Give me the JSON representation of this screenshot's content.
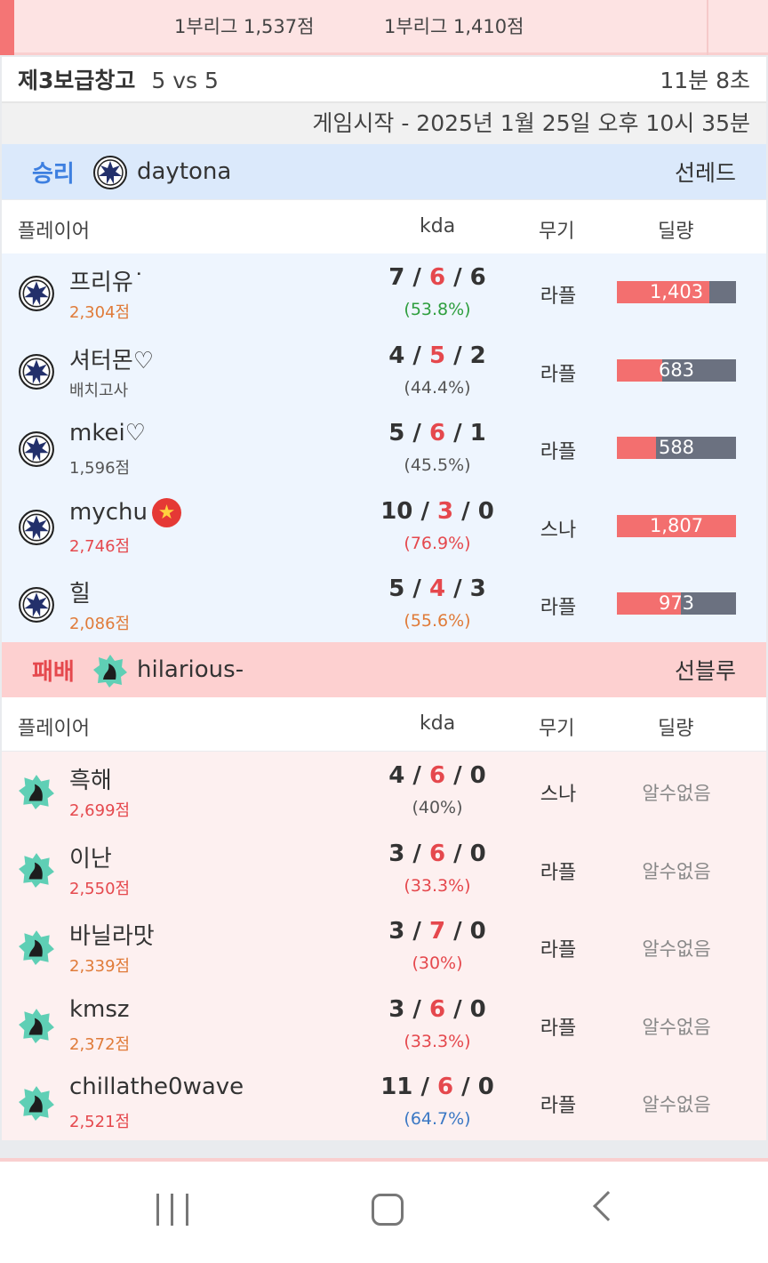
{
  "prev_match": {
    "left_league": "1부리그 1,537점",
    "right_league": "1부리그 1,410점"
  },
  "game": {
    "map": "제3보급창고",
    "mode": "5 vs 5",
    "duration": "11분 8초",
    "start_time": "게임시작 - 2025년 1월 25일 오후 10시 35분"
  },
  "columns": {
    "player": "플레이어",
    "kda": "kda",
    "weapon": "무기",
    "damage": "딜량"
  },
  "colors": {
    "win": "#3d7fe0",
    "lose": "#e5484d",
    "win_bg": "#dbe9fb",
    "lose_bg": "#fdd0d0",
    "orange": "#e07b39",
    "red": "#e5484d",
    "green": "#2e9e3e",
    "gray": "#555555",
    "blue": "#3b78c4"
  },
  "max_damage": 1807,
  "winner": {
    "result": "승리",
    "clan": "daytona",
    "side": "선레드",
    "emblem": "daytona-emblem-icon",
    "players": [
      {
        "name": "프리유˙",
        "points": "2,304점",
        "points_color": "orange",
        "k": "7",
        "d": "6",
        "a": "6",
        "pct": "(53.8%)",
        "pct_color": "green",
        "weapon": "라플",
        "damage": 1403,
        "damage_label": "1,403"
      },
      {
        "name": "셔터몬♡",
        "points": "배치고사",
        "points_color": "gray",
        "k": "4",
        "d": "5",
        "a": "2",
        "pct": "(44.4%)",
        "pct_color": "gray",
        "weapon": "라플",
        "damage": 683,
        "damage_label": "683"
      },
      {
        "name": "mkei♡",
        "points": "1,596점",
        "points_color": "gray",
        "k": "5",
        "d": "6",
        "a": "1",
        "pct": "(45.5%)",
        "pct_color": "gray",
        "weapon": "라플",
        "damage": 588,
        "damage_label": "588"
      },
      {
        "name": "mychu",
        "badge": "star-badge-icon",
        "points": "2,746점",
        "points_color": "red",
        "k": "10",
        "d": "3",
        "a": "0",
        "pct": "(76.9%)",
        "pct_color": "red",
        "weapon": "스나",
        "damage": 1807,
        "damage_label": "1,807"
      },
      {
        "name": "힐",
        "points": "2,086점",
        "points_color": "orange",
        "k": "5",
        "d": "4",
        "a": "3",
        "pct": "(55.6%)",
        "pct_color": "orange",
        "weapon": "라플",
        "damage": 973,
        "damage_label": "973"
      }
    ]
  },
  "loser": {
    "result": "패배",
    "clan": "hilarious-",
    "side": "선블루",
    "emblem": "hilarious-emblem-icon",
    "unknown": "알수없음",
    "players": [
      {
        "name": "흑해",
        "points": "2,699점",
        "points_color": "red",
        "k": "4",
        "d": "6",
        "a": "0",
        "pct": "(40%)",
        "pct_color": "gray",
        "weapon": "스나"
      },
      {
        "name": "이난",
        "points": "2,550점",
        "points_color": "red",
        "k": "3",
        "d": "6",
        "a": "0",
        "pct": "(33.3%)",
        "pct_color": "red",
        "weapon": "라플"
      },
      {
        "name": "바닐라맛",
        "points": "2,339점",
        "points_color": "orange",
        "k": "3",
        "d": "7",
        "a": "0",
        "pct": "(30%)",
        "pct_color": "red",
        "weapon": "라플"
      },
      {
        "name": "kmsz",
        "points": "2,372점",
        "points_color": "orange",
        "k": "3",
        "d": "6",
        "a": "0",
        "pct": "(33.3%)",
        "pct_color": "red",
        "weapon": "라플"
      },
      {
        "name": "chillathe0wave",
        "points": "2,521점",
        "points_color": "red",
        "k": "11",
        "d": "6",
        "a": "0",
        "pct": "(64.7%)",
        "pct_color": "blue",
        "weapon": "라플"
      }
    ]
  }
}
